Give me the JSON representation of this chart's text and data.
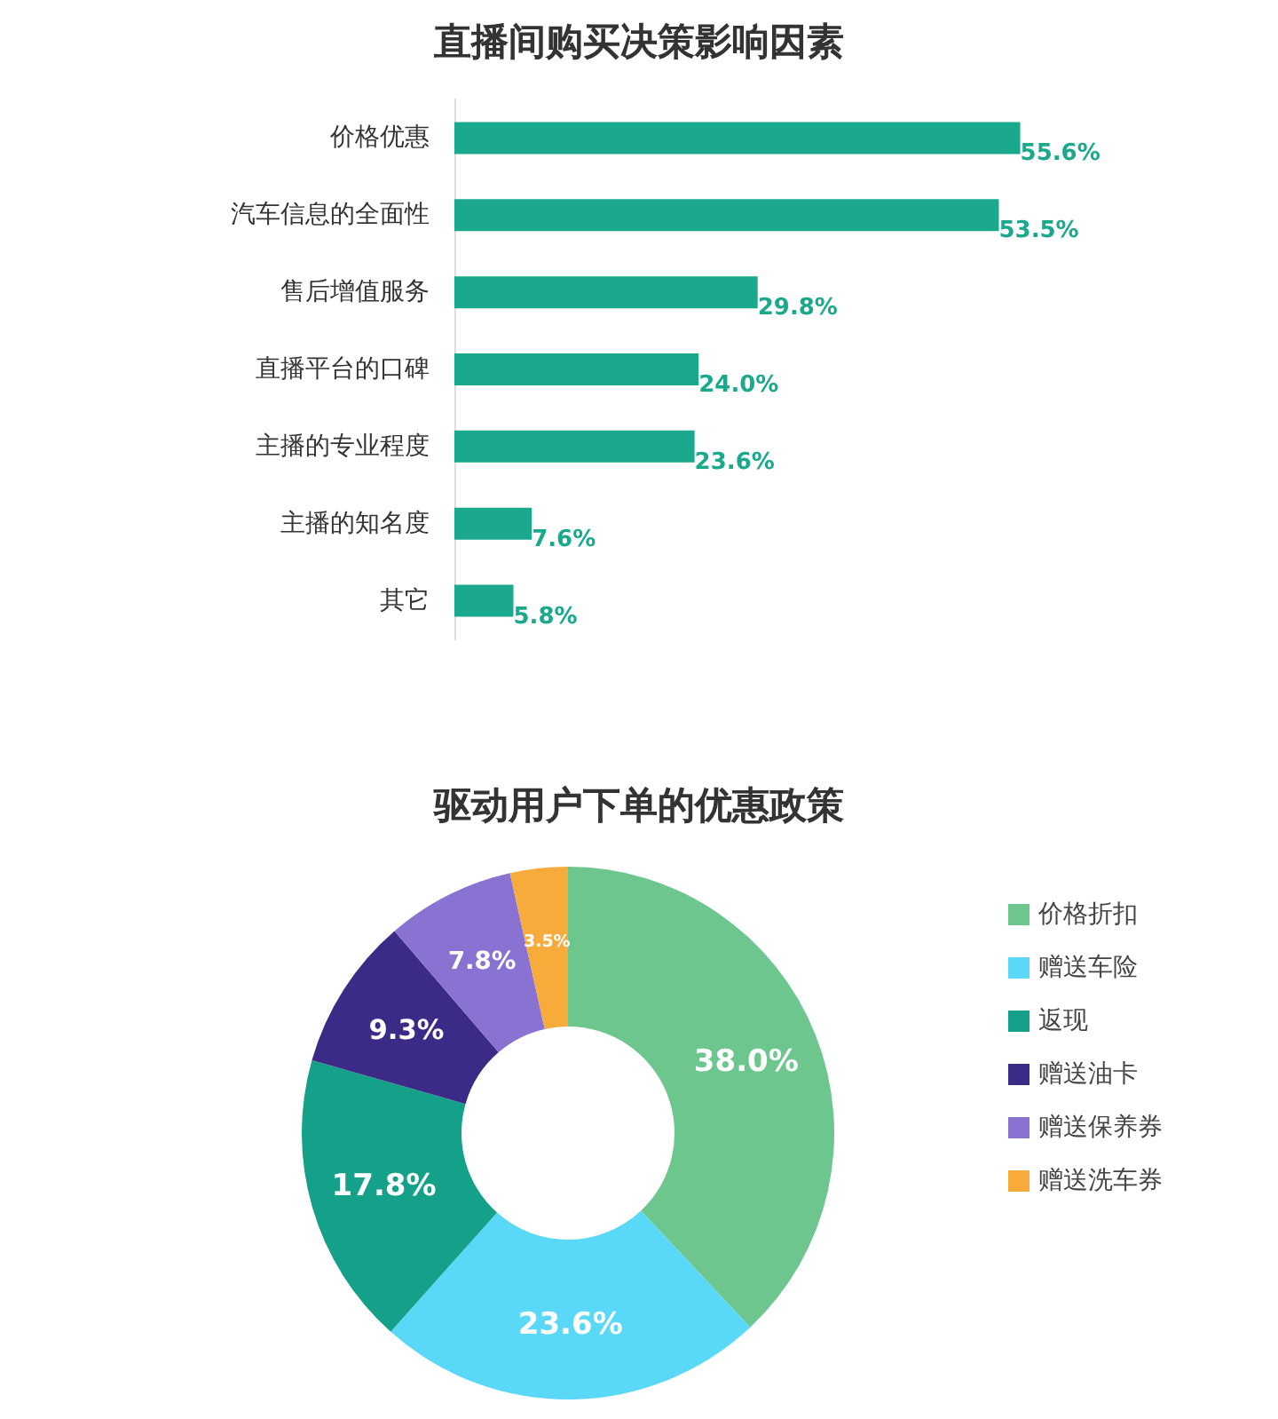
{
  "chart_data": [
    {
      "type": "bar",
      "title": "直播间购买决策影响因素",
      "orientation": "horizontal",
      "categories": [
        "价格优惠",
        "汽车信息的全面性",
        "售后增值服务",
        "直播平台的口碑",
        "主播的专业程度",
        "主播的知名度",
        "其它"
      ],
      "values": [
        55.6,
        53.5,
        29.8,
        24.0,
        23.6,
        7.6,
        5.8
      ],
      "color": "#1aa98c",
      "value_labels": [
        "55.6%",
        "53.5%",
        "29.8%",
        "24.0%",
        "23.6%",
        "7.6%",
        "5.8%"
      ],
      "grid": false,
      "legend": false
    },
    {
      "type": "donut",
      "title": "驱动用户下单的优惠政策",
      "categories": [
        "价格折扣",
        "赠送车险",
        "返现",
        "赠送油卡",
        "赠送保养券",
        "赠送洗车券"
      ],
      "values": [
        38.0,
        23.6,
        17.8,
        9.3,
        7.8,
        3.5
      ],
      "colors": [
        "#6cc68e",
        "#5ad8f8",
        "#15a08a",
        "#3b2a86",
        "#8a72d2",
        "#f6ab3a"
      ],
      "value_labels": [
        "38.0%",
        "23.6%",
        "17.8%",
        "9.3%",
        "7.8%",
        "3.5%"
      ],
      "legend": "right"
    }
  ]
}
